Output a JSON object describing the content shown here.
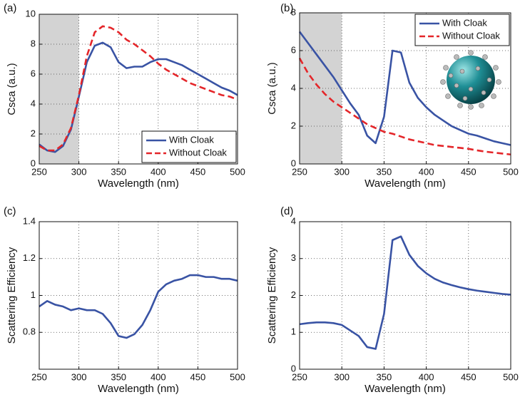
{
  "chart_data": [
    {
      "type": "line",
      "panel_label": "(a)",
      "xlabel": "Wavelength (nm)",
      "ylabel": "Csca (a.u.)",
      "x": [
        250,
        260,
        270,
        280,
        290,
        300,
        310,
        320,
        330,
        340,
        350,
        360,
        370,
        380,
        390,
        400,
        410,
        420,
        430,
        440,
        450,
        460,
        470,
        480,
        490,
        500
      ],
      "series": [
        {
          "name": "With Cloak",
          "color": "#3953a4",
          "dash": false,
          "values": [
            1.3,
            0.9,
            0.8,
            1.2,
            2.3,
            4.5,
            6.8,
            7.9,
            8.1,
            7.8,
            6.8,
            6.4,
            6.5,
            6.5,
            6.8,
            7.0,
            7.0,
            6.8,
            6.6,
            6.3,
            6.0,
            5.7,
            5.4,
            5.1,
            4.9,
            4.6
          ]
        },
        {
          "name": "Without Cloak",
          "color": "#e4262a",
          "dash": true,
          "values": [
            1.2,
            0.9,
            0.9,
            1.3,
            2.4,
            4.6,
            7.2,
            8.8,
            9.2,
            9.1,
            8.8,
            8.3,
            8.0,
            7.6,
            7.2,
            6.7,
            6.3,
            6.0,
            5.7,
            5.4,
            5.2,
            5.0,
            4.8,
            4.6,
            4.5,
            4.3
          ]
        }
      ],
      "xlim": [
        250,
        500
      ],
      "ylim": [
        0,
        10
      ],
      "xticks": [
        250,
        300,
        350,
        400,
        450,
        500
      ],
      "yticks": [
        0,
        2,
        4,
        6,
        8,
        10
      ],
      "grid": true,
      "legend": "lower right",
      "shade": [
        250,
        300
      ]
    },
    {
      "type": "line",
      "panel_label": "(b)",
      "xlabel": "Wavelength (nm)",
      "ylabel": "Csca (a.u.)",
      "x": [
        250,
        260,
        270,
        280,
        290,
        300,
        310,
        320,
        330,
        340,
        350,
        360,
        370,
        380,
        390,
        400,
        410,
        420,
        430,
        440,
        450,
        460,
        470,
        480,
        490,
        500
      ],
      "series": [
        {
          "name": "With Cloak",
          "color": "#3953a4",
          "dash": false,
          "values": [
            7.0,
            6.4,
            5.8,
            5.2,
            4.6,
            3.9,
            3.2,
            2.6,
            1.5,
            1.1,
            2.5,
            6.0,
            5.9,
            4.3,
            3.5,
            3.0,
            2.6,
            2.3,
            2.0,
            1.8,
            1.6,
            1.5,
            1.35,
            1.2,
            1.1,
            1.0
          ]
        },
        {
          "name": "Without Cloak",
          "color": "#e4262a",
          "dash": true,
          "values": [
            5.6,
            4.8,
            4.2,
            3.7,
            3.3,
            3.0,
            2.7,
            2.4,
            2.1,
            1.9,
            1.7,
            1.6,
            1.45,
            1.3,
            1.2,
            1.1,
            1.0,
            0.95,
            0.9,
            0.85,
            0.8,
            0.72,
            0.65,
            0.6,
            0.55,
            0.5
          ]
        }
      ],
      "xlim": [
        250,
        500
      ],
      "ylim": [
        0,
        8
      ],
      "xticks": [
        250,
        300,
        350,
        400,
        450,
        500
      ],
      "yticks": [
        0,
        2,
        4,
        6,
        8
      ],
      "grid": true,
      "legend": "upper right",
      "shade": [
        250,
        300
      ]
    },
    {
      "type": "line",
      "panel_label": "(c)",
      "xlabel": "Wavelength (nm)",
      "ylabel": "Scattering Efficiency",
      "x": [
        250,
        260,
        270,
        280,
        290,
        300,
        310,
        320,
        330,
        340,
        350,
        360,
        370,
        380,
        390,
        400,
        410,
        420,
        430,
        440,
        450,
        460,
        470,
        480,
        490,
        500
      ],
      "series": [
        {
          "color": "#3953a4",
          "dash": false,
          "values": [
            0.94,
            0.97,
            0.95,
            0.94,
            0.92,
            0.93,
            0.92,
            0.92,
            0.9,
            0.85,
            0.78,
            0.77,
            0.79,
            0.84,
            0.92,
            1.02,
            1.06,
            1.08,
            1.09,
            1.11,
            1.11,
            1.1,
            1.1,
            1.09,
            1.09,
            1.08
          ]
        }
      ],
      "xlim": [
        250,
        500
      ],
      "ylim": [
        0.6,
        1.4
      ],
      "xticks": [
        250,
        300,
        350,
        400,
        450,
        500
      ],
      "yticks": [
        0.8,
        1,
        1.2,
        1.4
      ],
      "grid": true
    },
    {
      "type": "line",
      "panel_label": "(d)",
      "xlabel": "Wavelength (nm)",
      "ylabel": "Scattering Efficiency",
      "x": [
        250,
        260,
        270,
        280,
        290,
        300,
        310,
        320,
        330,
        340,
        350,
        360,
        370,
        380,
        390,
        400,
        410,
        420,
        430,
        440,
        450,
        460,
        470,
        480,
        490,
        500
      ],
      "series": [
        {
          "color": "#3953a4",
          "dash": false,
          "values": [
            1.22,
            1.25,
            1.27,
            1.27,
            1.25,
            1.2,
            1.05,
            0.9,
            0.6,
            0.55,
            1.5,
            3.5,
            3.6,
            3.1,
            2.8,
            2.6,
            2.45,
            2.35,
            2.28,
            2.22,
            2.17,
            2.13,
            2.1,
            2.07,
            2.04,
            2.02
          ]
        }
      ],
      "xlim": [
        250,
        500
      ],
      "ylim": [
        0,
        4
      ],
      "xticks": [
        250,
        300,
        350,
        400,
        450,
        500
      ],
      "yticks": [
        0,
        1,
        2,
        3,
        4
      ],
      "grid": true
    }
  ]
}
